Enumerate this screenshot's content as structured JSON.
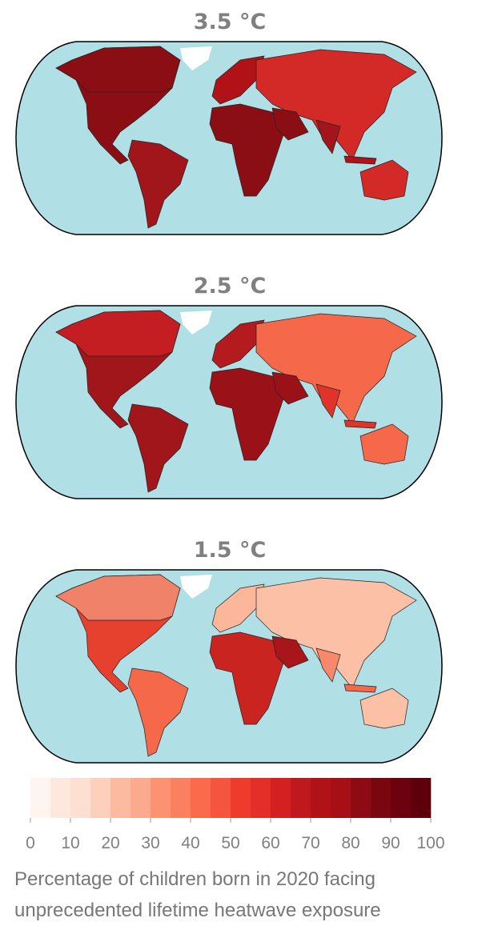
{
  "maps": [
    {
      "title": "3.5 °C"
    },
    {
      "title": "2.5 °C"
    },
    {
      "title": "1.5 °C"
    }
  ],
  "colorbar": {
    "lim": [
      0,
      100
    ],
    "ticks": [
      0,
      10,
      20,
      30,
      40,
      50,
      60,
      70,
      80,
      90,
      100
    ],
    "colors": [
      "#fff5f0",
      "#fee8de",
      "#fee0d2",
      "#fdd0bc",
      "#fcbba1",
      "#fcaa8d",
      "#fc9272",
      "#fb8060",
      "#fb6a4a",
      "#f5553c",
      "#ef3b2c",
      "#e32f27",
      "#d42020",
      "#c0191d",
      "#b01217",
      "#a50f15",
      "#8e0b13",
      "#7a0710",
      "#6c020e",
      "#5e000b"
    ],
    "label": [
      "Percentage of children born in 2020 facing",
      "unprecedented lifetime heatwave exposure"
    ]
  }
}
